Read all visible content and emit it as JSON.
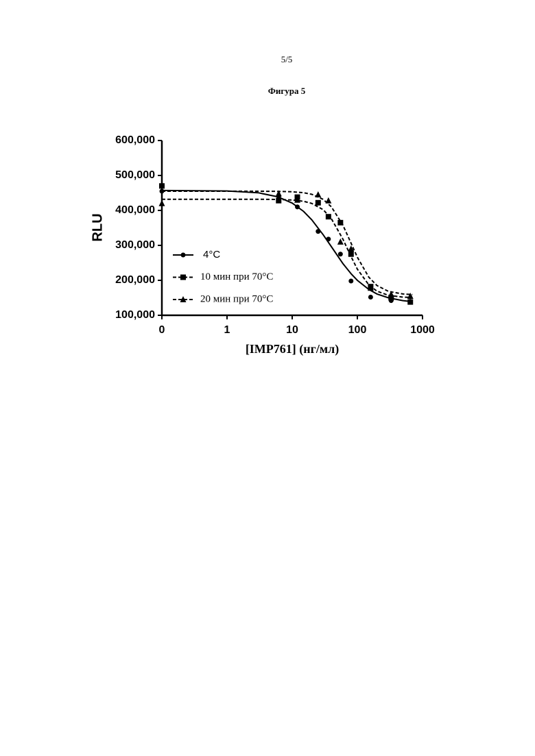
{
  "header": {
    "page": "5/5",
    "figure": "Фигура 5"
  },
  "chart_data": {
    "type": "scatter",
    "x_label": "[IMP761] (нг/мл)",
    "y_label": "RLU",
    "log_x": true,
    "xlim": [
      0.1,
      1000
    ],
    "xticks": [
      {
        "value": 0.1,
        "label": "0"
      },
      1,
      10,
      100,
      1000
    ],
    "ylim": [
      100000,
      600000
    ],
    "yticks": [
      {
        "value": 100000,
        "label": "100,000"
      },
      {
        "value": 200000,
        "label": "200,000"
      },
      {
        "value": 300000,
        "label": "300,000"
      },
      {
        "value": 400000,
        "label": "400,000"
      },
      {
        "value": 500000,
        "label": "500,000"
      },
      {
        "value": 600000,
        "label": "600,000"
      }
    ],
    "legend": "left",
    "x": [
      0.1,
      6.2,
      12,
      25,
      36,
      55,
      80,
      160,
      330,
      650
    ],
    "fit_x": [
      0.1,
      1,
      3,
      6,
      10,
      15,
      20,
      30,
      40,
      60,
      80,
      100,
      150,
      200,
      300,
      500,
      700
    ],
    "series": [
      {
        "name": "4°C",
        "color": "#000000",
        "marker": "circle",
        "dash": false,
        "values": [
          455000,
          440000,
          410000,
          340000,
          318000,
          275000,
          198000,
          152000,
          142000,
          140000
        ],
        "fit_values": [
          457000,
          455700,
          450500,
          439000,
          421000,
          397000,
          373000,
          330000,
          296000,
          248000,
          219000,
          200000,
          174000,
          161000,
          150000,
          142000,
          139000
        ]
      },
      {
        "name": "10 мин при 70°C",
        "color": "#000000",
        "marker": "square",
        "dash": true,
        "values": [
          470000,
          428000,
          438000,
          422000,
          382000,
          365000,
          275000,
          182000,
          150000,
          138000
        ],
        "fit_values": [
          432000,
          432000,
          432000,
          431400,
          429800,
          426000,
          420000,
          402000,
          376000,
          318000,
          268000,
          232000,
          187000,
          169000,
          157000,
          152000,
          151000
        ]
      },
      {
        "name": "20 мин при 70°C",
        "color": "#000000",
        "marker": "triangle",
        "dash": true,
        "values": [
          420000,
          448000,
          430000,
          445000,
          428000,
          310000,
          290000,
          178000,
          160000,
          155000
        ],
        "fit_values": [
          455000,
          455000,
          455000,
          454600,
          453400,
          450600,
          446000,
          431500,
          410000,
          358000,
          306500,
          266000,
          209000,
          185000,
          168500,
          161000,
          159300
        ]
      }
    ]
  }
}
